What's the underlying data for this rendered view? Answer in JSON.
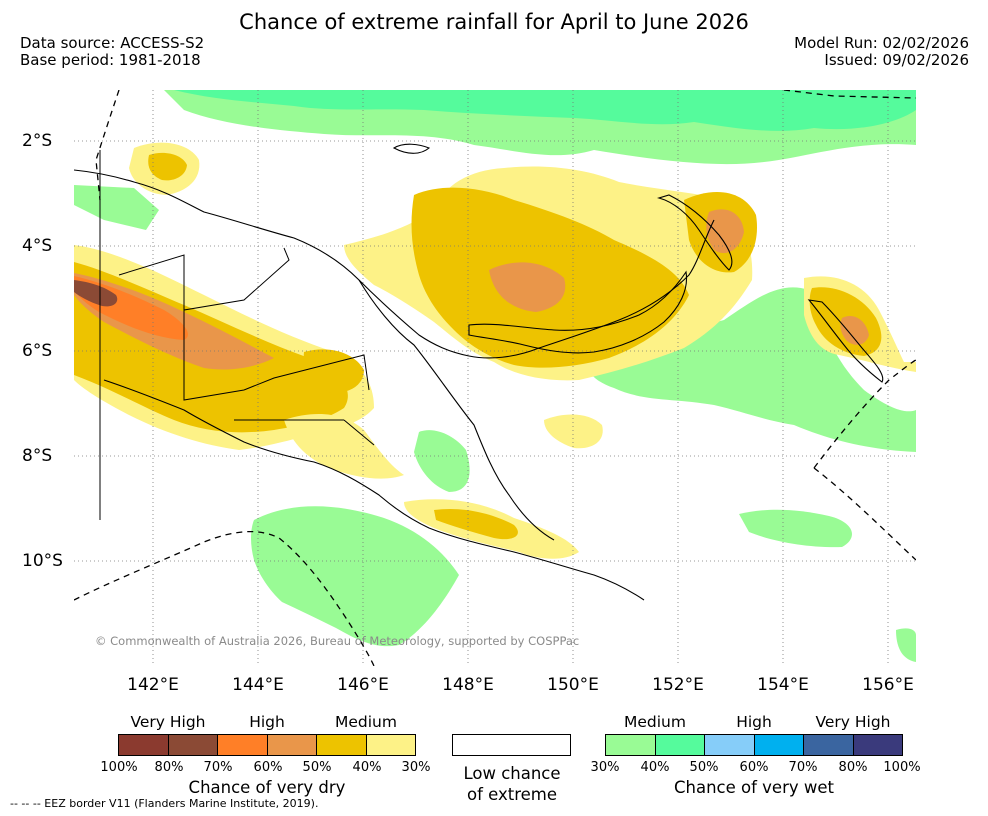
{
  "title": "Chance of extreme rainfall for April to June 2026",
  "data_source": "Data source: ACCESS-S2",
  "base_period": "Base period: 1981-2018",
  "model_run": "Model Run: 02/02/2026",
  "issued": "Issued: 09/02/2026",
  "lat_labels": [
    "2°S",
    "4°S",
    "6°S",
    "8°S",
    "10°S"
  ],
  "lon_labels": [
    "142°E",
    "144°E",
    "146°E",
    "148°E",
    "150°E",
    "152°E",
    "154°E",
    "156°E"
  ],
  "copyright": "© Commonwealth of Australia 2026, Bureau of Meteorology, supported by COSPPac",
  "legend": {
    "dry": {
      "categories": [
        "Very High",
        "High",
        "Medium"
      ],
      "colors": [
        "#8b3a2f",
        "#8b4a35",
        "#ff7f27",
        "#e9964a",
        "#edc300",
        "#fdf287"
      ],
      "ticks": [
        "100%",
        "80%",
        "70%",
        "60%",
        "50%",
        "40%",
        "30%"
      ],
      "title": "Chance of very dry"
    },
    "neutral": {
      "line1": "Low chance",
      "line2": "of extreme",
      "color": "#ffffff"
    },
    "wet": {
      "categories": [
        "Medium",
        "High",
        "Very High"
      ],
      "colors": [
        "#99fb95",
        "#55fb9c",
        "#86cdf9",
        "#00b0ef",
        "#3a65a0",
        "#3a3a7c"
      ],
      "ticks": [
        "30%",
        "40%",
        "50%",
        "60%",
        "70%",
        "80%",
        "100%"
      ],
      "title": "Chance of very wet"
    }
  },
  "footnote": "-- -- -- EEZ border V11 (Flanders Marine Institute, 2019)."
}
